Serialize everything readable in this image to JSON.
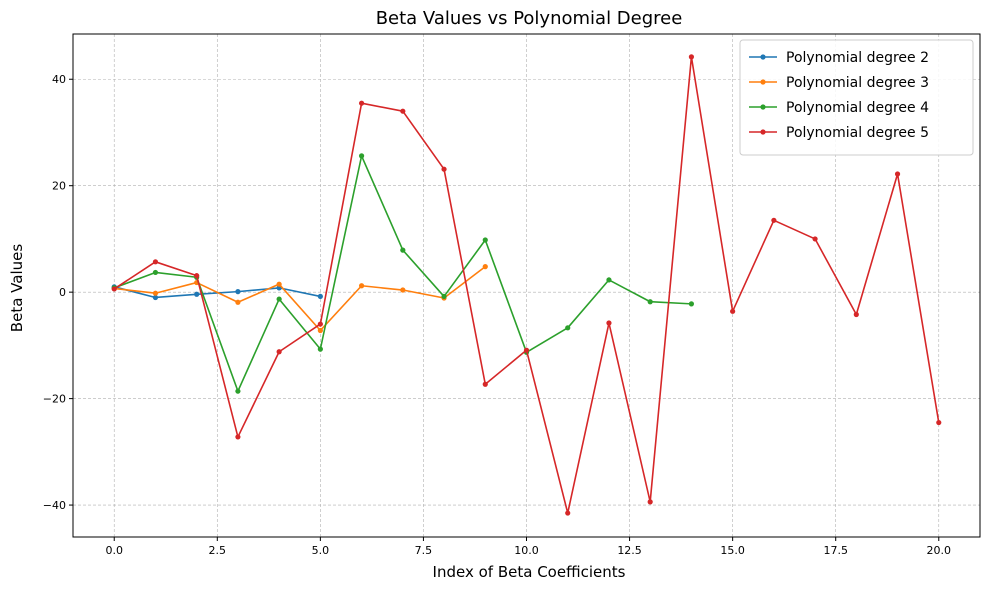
{
  "chart_data": {
    "type": "line",
    "title": "Beta Values vs Polynomial Degree",
    "xlabel": "Index of Beta Coefficients",
    "ylabel": "Beta Values",
    "xlim": [
      -1,
      21
    ],
    "ylim": [
      -46,
      48.5
    ],
    "xticks": [
      0,
      2.5,
      5,
      7.5,
      10,
      12.5,
      15,
      17.5,
      20
    ],
    "xtick_labels": [
      "0.0",
      "2.5",
      "5.0",
      "7.5",
      "10.0",
      "12.5",
      "15.0",
      "17.5",
      "20.0"
    ],
    "yticks": [
      -40,
      -20,
      0,
      20,
      40
    ],
    "ytick_labels": [
      "−40",
      "−20",
      "0",
      "20",
      "40"
    ],
    "grid": true,
    "legend_position": "top-right",
    "series": [
      {
        "name": "Polynomial degree 2",
        "color": "#1f77b4",
        "x": [
          0,
          1,
          2,
          3,
          4,
          5
        ],
        "y": [
          1.0,
          -1.0,
          -0.4,
          0.1,
          0.8,
          -0.8
        ]
      },
      {
        "name": "Polynomial degree 3",
        "color": "#ff7f0e",
        "x": [
          0,
          1,
          2,
          3,
          4,
          5,
          6,
          7,
          8,
          9
        ],
        "y": [
          0.7,
          -0.2,
          1.8,
          -1.9,
          1.5,
          -7.2,
          1.2,
          0.4,
          -1.1,
          4.8
        ]
      },
      {
        "name": "Polynomial degree 4",
        "color": "#2ca02c",
        "x": [
          0,
          1,
          2,
          3,
          4,
          5,
          6,
          7,
          8,
          9,
          10,
          11,
          12,
          13,
          14
        ],
        "y": [
          0.8,
          3.7,
          2.8,
          -18.6,
          -1.3,
          -10.7,
          25.6,
          7.9,
          -0.8,
          9.8,
          -11.3,
          -6.7,
          2.3,
          -1.8,
          -2.2
        ]
      },
      {
        "name": "Polynomial degree 5",
        "color": "#d62728",
        "x": [
          0,
          1,
          2,
          3,
          4,
          5,
          6,
          7,
          8,
          9,
          10,
          11,
          12,
          13,
          14,
          15,
          16,
          17,
          18,
          19,
          20
        ],
        "y": [
          0.6,
          5.7,
          3.1,
          -27.2,
          -11.2,
          -6.0,
          35.5,
          34.0,
          23.1,
          -17.3,
          -10.9,
          -41.5,
          -5.8,
          -39.4,
          44.2,
          -3.6,
          13.5,
          10.0,
          -4.2,
          22.2,
          -24.5
        ]
      }
    ]
  }
}
